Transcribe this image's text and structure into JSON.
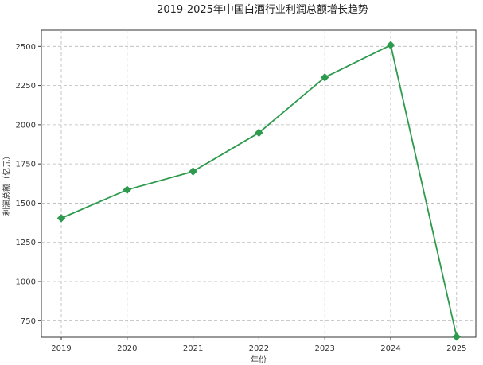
{
  "chart_data": {
    "type": "line",
    "title": "2019-2025年中国白酒行业利润总额增长趋势",
    "xlabel": "年份",
    "ylabel": "利润总额（亿元）",
    "categories": [
      "2019",
      "2020",
      "2021",
      "2022",
      "2023",
      "2024",
      "2025"
    ],
    "series": [
      {
        "values": [
          1404,
          1585,
          1702,
          1949,
          2302,
          2508,
          648
        ]
      }
    ],
    "ylim": [
      645,
      2603
    ],
    "yticks": [
      750,
      1000,
      1250,
      1500,
      1750,
      2000,
      2250,
      2500
    ],
    "grid": true,
    "marker": "diamond",
    "colors": {
      "line": "#2e9a4e",
      "grid": "#b8b8b8",
      "axes": "#333333"
    }
  }
}
